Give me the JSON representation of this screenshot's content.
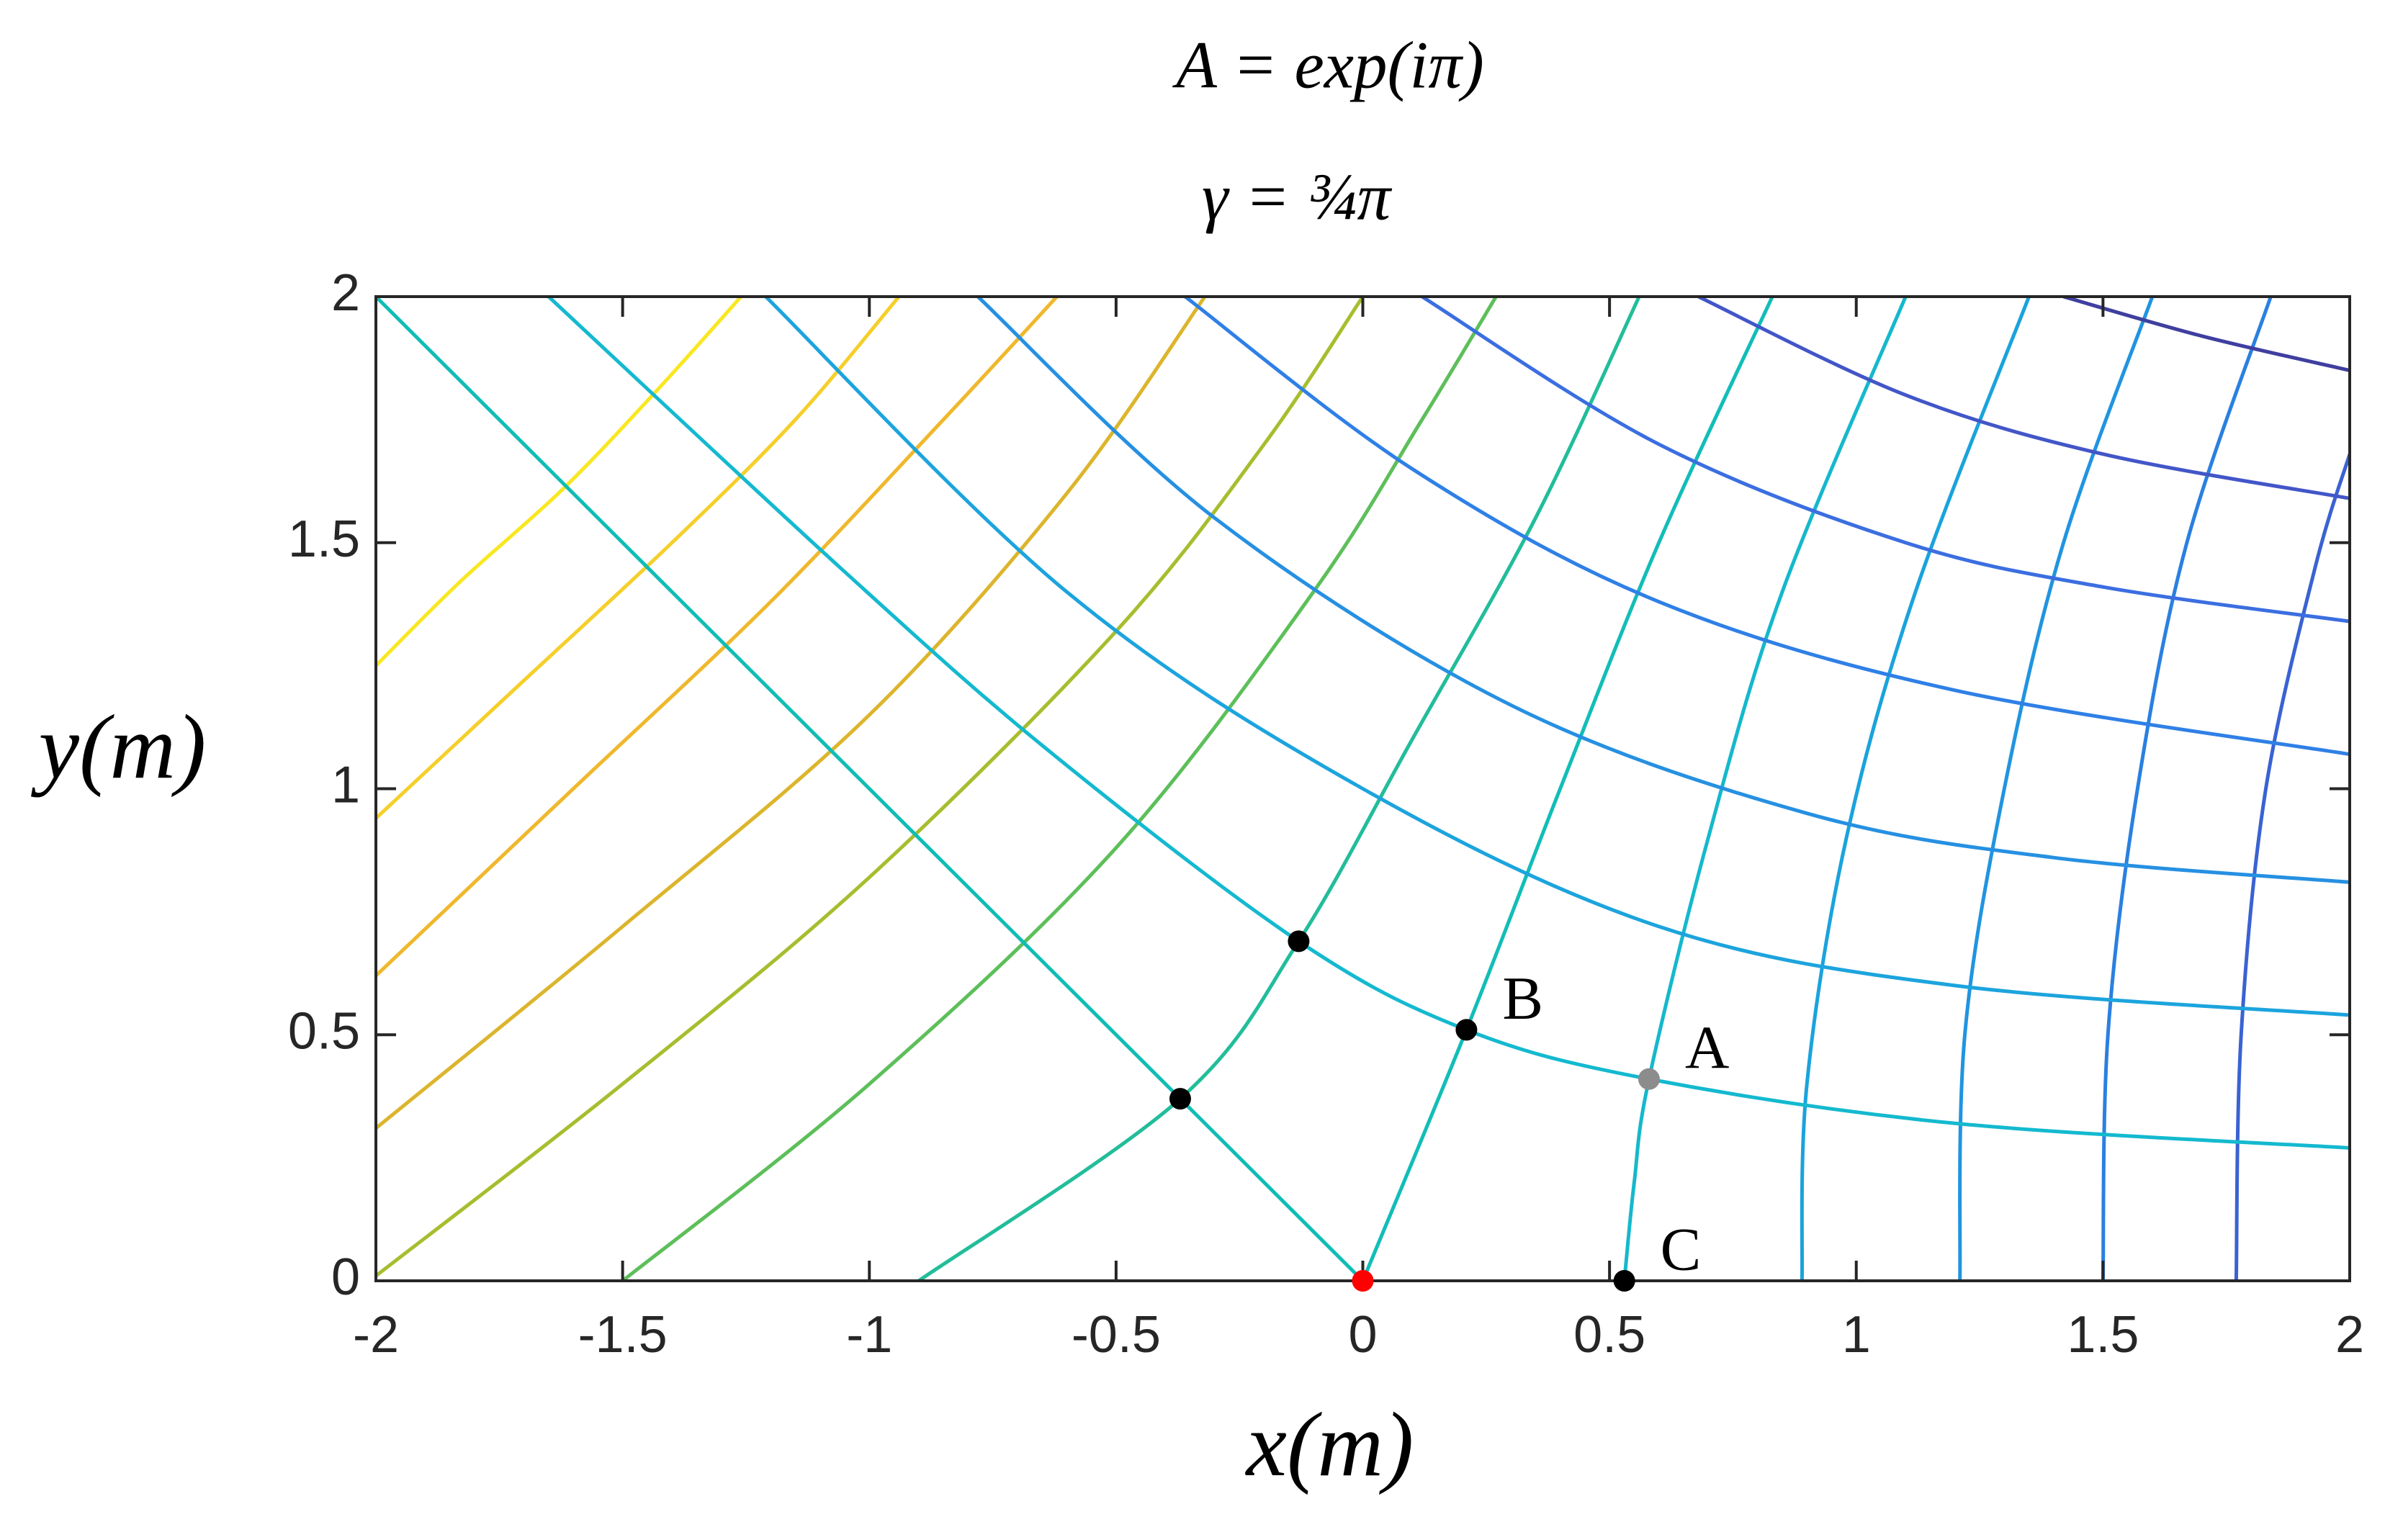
{
  "chart_data": {
    "type": "line",
    "title": "A = exp(iπ)",
    "subtitle": "γ = ¾π",
    "x_label": "x(m)",
    "y_label": "y(m)",
    "xlim": [
      -2,
      2
    ],
    "ylim": [
      0,
      2
    ],
    "xticks": [
      -2,
      -1.5,
      -1,
      -0.5,
      0,
      0.5,
      1,
      1.5,
      2
    ],
    "yticks": [
      0,
      0.5,
      1,
      1.5,
      2
    ],
    "series": [
      {
        "color": "#f9e721",
        "x": [
          -2,
          -1.83,
          -1.62,
          -1.43,
          -1.26
        ],
        "y": [
          1.25,
          1.42,
          1.61,
          1.81,
          2
        ]
      },
      {
        "color": "#f5cf2a",
        "x": [
          -2,
          -1.7,
          -1.4,
          -1.15,
          -0.94
        ],
        "y": [
          0.94,
          1.22,
          1.5,
          1.75,
          2
        ]
      },
      {
        "color": "#efb82c",
        "x": [
          -2,
          -1.6,
          -1.2,
          -0.85,
          -0.62
        ],
        "y": [
          0.62,
          1.0,
          1.38,
          1.75,
          2
        ]
      },
      {
        "color": "#dcb52c",
        "x": [
          -2,
          -1.5,
          -1.0,
          -0.6,
          -0.32
        ],
        "y": [
          0.31,
          0.72,
          1.15,
          1.6,
          2
        ]
      },
      {
        "color": "#a8bd2e",
        "x": [
          -2,
          -1.5,
          -1.0,
          -0.5,
          -0.2,
          0.0
        ],
        "y": [
          0.01,
          0.4,
          0.82,
          1.32,
          1.7,
          2
        ]
      },
      {
        "color": "#5dbf5a",
        "x": [
          -1.5,
          -1.0,
          -0.5,
          -0.1,
          0.12,
          0.27
        ],
        "y": [
          0,
          0.4,
          0.88,
          1.4,
          1.75,
          2
        ]
      },
      {
        "color": "#22bd9a",
        "x": [
          -0.9,
          -0.37,
          -0.13,
          0.1,
          0.35,
          0.56
        ],
        "y": [
          0,
          0.37,
          0.69,
          1.1,
          1.55,
          2
        ]
      },
      {
        "color": "#12bdb8",
        "x": [
          0,
          0.21,
          0.4,
          0.6,
          0.83
        ],
        "y": [
          0,
          0.51,
          1.0,
          1.5,
          2
        ]
      },
      {
        "color": "#15b8cc",
        "x": [
          0.53,
          0.55,
          0.58,
          0.7,
          0.85,
          1.1
        ],
        "y": [
          0,
          0.2,
          0.41,
          0.9,
          1.4,
          2
        ]
      },
      {
        "color": "#1aa3dc",
        "x": [
          0.89,
          0.9,
          0.98,
          1.12,
          1.35
        ],
        "y": [
          0,
          0.4,
          0.9,
          1.4,
          2
        ]
      },
      {
        "color": "#2194e0",
        "x": [
          1.21,
          1.22,
          1.3,
          1.42,
          1.6
        ],
        "y": [
          0,
          0.5,
          1.0,
          1.5,
          2
        ]
      },
      {
        "color": "#2a80e0",
        "x": [
          1.5,
          1.51,
          1.57,
          1.67,
          1.84
        ],
        "y": [
          0,
          0.5,
          1.0,
          1.5,
          2
        ]
      },
      {
        "color": "#3a62d2",
        "x": [
          1.77,
          1.78,
          1.83,
          1.93,
          2
        ],
        "y": [
          0,
          0.5,
          1.0,
          1.45,
          1.68
        ]
      },
      {
        "color": "#10bdb5",
        "x": [
          -2,
          -1,
          0
        ],
        "y": [
          2,
          1,
          0
        ]
      },
      {
        "color": "#14b9cf",
        "x": [
          -1.65,
          -1.06,
          -0.64,
          -0.13,
          0.21,
          0.58,
          1.2,
          2
        ],
        "y": [
          2,
          1.45,
          1.08,
          0.69,
          0.51,
          0.41,
          0.32,
          0.27
        ]
      },
      {
        "color": "#1ca4dd",
        "x": [
          -1.21,
          -0.6,
          0,
          0.6,
          1.2,
          2
        ],
        "y": [
          2,
          1.4,
          1.0,
          0.72,
          0.6,
          0.54
        ]
      },
      {
        "color": "#2690e2",
        "x": [
          -0.78,
          -0.3,
          0.3,
          0.9,
          1.4,
          2
        ],
        "y": [
          2,
          1.55,
          1.17,
          0.95,
          0.86,
          0.81
        ]
      },
      {
        "color": "#2f80e6",
        "x": [
          -0.36,
          0.1,
          0.6,
          1.2,
          2
        ],
        "y": [
          2,
          1.65,
          1.38,
          1.2,
          1.07
        ]
      },
      {
        "color": "#3b6ee0",
        "x": [
          0.12,
          0.6,
          1.1,
          1.5,
          2
        ],
        "y": [
          2,
          1.7,
          1.5,
          1.41,
          1.34
        ]
      },
      {
        "color": "#4256c8",
        "x": [
          0.68,
          1.1,
          1.5,
          2
        ],
        "y": [
          2,
          1.8,
          1.68,
          1.59
        ]
      },
      {
        "color": "#3f3fa0",
        "x": [
          1.42,
          1.7,
          2
        ],
        "y": [
          2,
          1.92,
          1.85
        ]
      }
    ],
    "points": {
      "x": [
        0,
        -0.37,
        -0.13,
        0.21,
        0.58,
        0.53
      ],
      "y": [
        0,
        0.37,
        0.69,
        0.51,
        0.41,
        0
      ],
      "colors": [
        "#ff0000",
        "#000000",
        "#000000",
        "#000000",
        "#8c8c8c",
        "#000000"
      ],
      "labels": [
        null,
        null,
        null,
        "B",
        "A",
        "C"
      ]
    }
  }
}
